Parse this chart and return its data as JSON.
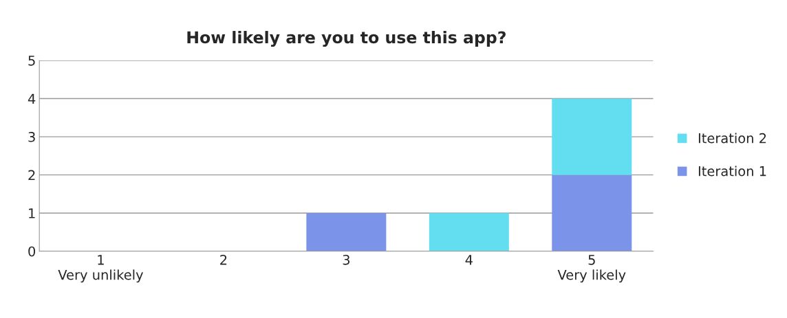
{
  "chart_data": {
    "type": "bar",
    "title": "How likely are you to use this app?",
    "categories": [
      "1\nVery unlikely",
      "2",
      "3",
      "4",
      "5\nVery likely"
    ],
    "stacked": true,
    "series": [
      {
        "name": "Iteration 1",
        "color": "#7b93e8",
        "values": [
          0,
          0,
          1,
          0,
          2
        ]
      },
      {
        "name": "Iteration 2",
        "color": "#62def0",
        "values": [
          0,
          0,
          0,
          1,
          2
        ]
      }
    ],
    "ylim": [
      0,
      5
    ],
    "yticks": [
      0,
      1,
      2,
      3,
      4,
      5
    ],
    "grid": "y",
    "legend": "right"
  }
}
